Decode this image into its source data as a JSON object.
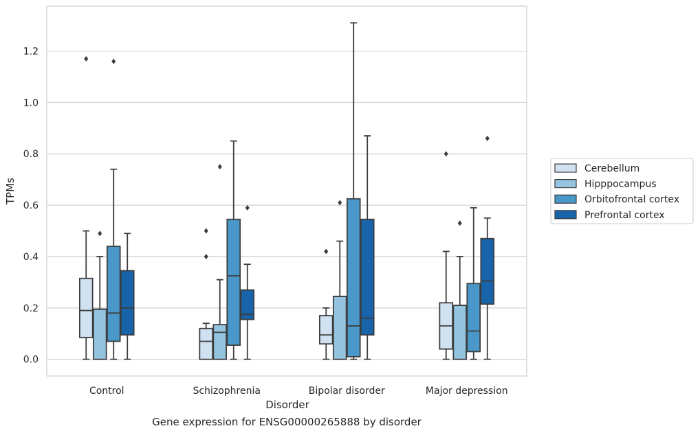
{
  "caption": "Gene expression for ENSG00000265888 by disorder",
  "chart_data": {
    "type": "boxplot",
    "xlabel": "Disorder",
    "ylabel": "TPMs",
    "ylim": [
      -0.065,
      1.375
    ],
    "yticks": [
      0.0,
      0.2,
      0.4,
      0.6,
      0.8,
      1.0,
      1.2
    ],
    "ytick_labels": [
      "0.0",
      "0.2",
      "0.4",
      "0.6",
      "0.8",
      "1.0",
      "1.2"
    ],
    "grid": "horizontal",
    "legend_position": "right",
    "categories": [
      "Control",
      "Schizophrenia",
      "Bipolar disorder",
      "Major depression"
    ],
    "series": [
      {
        "name": "Cerebellum",
        "color": "#d0e1f2",
        "boxes": [
          {
            "whislo": 0.0,
            "q1": 0.085,
            "median": 0.19,
            "q3": 0.315,
            "whishi": 0.5,
            "fliers": [
              1.17
            ]
          },
          {
            "whislo": 0.0,
            "q1": 0.0,
            "median": 0.07,
            "q3": 0.12,
            "whishi": 0.14,
            "fliers": [
              0.4,
              0.5
            ]
          },
          {
            "whislo": 0.0,
            "q1": 0.06,
            "median": 0.095,
            "q3": 0.17,
            "whishi": 0.2,
            "fliers": [
              0.42
            ]
          },
          {
            "whislo": 0.0,
            "q1": 0.04,
            "median": 0.13,
            "q3": 0.22,
            "whishi": 0.42,
            "fliers": [
              0.8
            ]
          }
        ]
      },
      {
        "name": "Hipppocampus",
        "color": "#94c4df",
        "boxes": [
          {
            "whislo": 0.0,
            "q1": 0.0,
            "median": 0.195,
            "q3": 0.195,
            "whishi": 0.4,
            "fliers": [
              0.49
            ]
          },
          {
            "whislo": 0.0,
            "q1": 0.0,
            "median": 0.105,
            "q3": 0.135,
            "whishi": 0.31,
            "fliers": [
              0.75
            ]
          },
          {
            "whislo": 0.0,
            "q1": 0.0,
            "median": 0.245,
            "q3": 0.245,
            "whishi": 0.46,
            "fliers": [
              0.61
            ]
          },
          {
            "whislo": 0.0,
            "q1": 0.0,
            "median": 0.21,
            "q3": 0.21,
            "whishi": 0.4,
            "fliers": [
              0.53
            ]
          }
        ]
      },
      {
        "name": "Orbitofrontal cortex",
        "color": "#4a98c9",
        "boxes": [
          {
            "whislo": 0.0,
            "q1": 0.07,
            "median": 0.18,
            "q3": 0.44,
            "whishi": 0.74,
            "fliers": [
              1.16
            ]
          },
          {
            "whislo": 0.0,
            "q1": 0.055,
            "median": 0.325,
            "q3": 0.545,
            "whishi": 0.85,
            "fliers": []
          },
          {
            "whislo": 0.0,
            "q1": 0.01,
            "median": 0.13,
            "q3": 0.625,
            "whishi": 1.31,
            "fliers": []
          },
          {
            "whislo": 0.0,
            "q1": 0.03,
            "median": 0.11,
            "q3": 0.295,
            "whishi": 0.59,
            "fliers": []
          }
        ]
      },
      {
        "name": "Prefrontal cortex",
        "color": "#1764ab",
        "boxes": [
          {
            "whislo": 0.0,
            "q1": 0.095,
            "median": 0.2,
            "q3": 0.345,
            "whishi": 0.49,
            "fliers": []
          },
          {
            "whislo": 0.0,
            "q1": 0.155,
            "median": 0.175,
            "q3": 0.27,
            "whishi": 0.37,
            "fliers": [
              0.59
            ]
          },
          {
            "whislo": 0.0,
            "q1": 0.095,
            "median": 0.16,
            "q3": 0.545,
            "whishi": 0.87,
            "fliers": []
          },
          {
            "whislo": 0.0,
            "q1": 0.215,
            "median": 0.305,
            "q3": 0.47,
            "whishi": 0.55,
            "fliers": [
              0.86
            ]
          }
        ]
      }
    ]
  }
}
